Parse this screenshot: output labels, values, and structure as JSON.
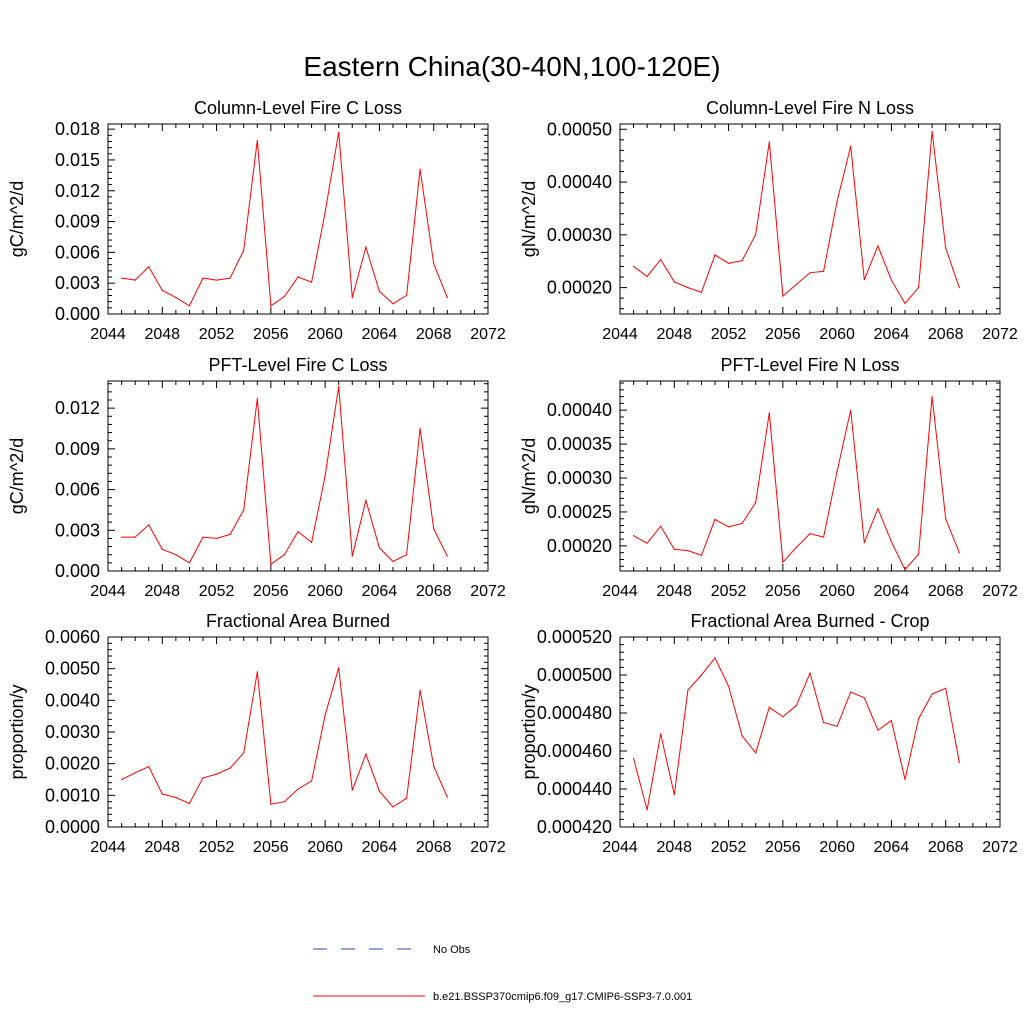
{
  "figure_title": "Eastern China(30-40N,100-120E)",
  "legend": [
    {
      "label": "No Obs",
      "color": "#3344aa",
      "style": "dashed"
    },
    {
      "label": "b.e21.BSSP370cmip6.f09_g17.CMIP6-SSP3-7.0.001",
      "color": "#ff0000",
      "style": "solid"
    }
  ],
  "chart_data": [
    {
      "type": "line",
      "title": "Column-Level Fire C Loss",
      "ylabel": "gC/m^2/d",
      "xlim": [
        2044,
        2072
      ],
      "xticks": [
        "2044",
        "2048",
        "2052",
        "2056",
        "2060",
        "2064",
        "2068",
        "2072"
      ],
      "ylim": [
        0,
        0.0185
      ],
      "yticks": [
        "0.000",
        "0.003",
        "0.006",
        "0.009",
        "0.012",
        "0.015",
        "0.018"
      ],
      "x": [
        2045,
        2046,
        2047,
        2048,
        2049,
        2050,
        2051,
        2052,
        2053,
        2054,
        2055,
        2056,
        2057,
        2058,
        2059,
        2060,
        2061,
        2062,
        2063,
        2064,
        2065,
        2066,
        2067,
        2068,
        2069
      ],
      "series": [
        {
          "values": [
            0.0035,
            0.0033,
            0.0046,
            0.0023,
            0.0016,
            0.0008,
            0.0035,
            0.0033,
            0.0035,
            0.0062,
            0.0169,
            0.0008,
            0.0017,
            0.0036,
            0.0031,
            0.0099,
            0.0177,
            0.0016,
            0.0065,
            0.0022,
            0.001,
            0.0018,
            0.0141,
            0.0049,
            0.0016
          ],
          "color": "#ff0000"
        }
      ]
    },
    {
      "type": "line",
      "title": "Column-Level Fire N Loss",
      "ylabel": "gN/m^2/d",
      "xlim": [
        2044,
        2072
      ],
      "xticks": [
        "2044",
        "2048",
        "2052",
        "2056",
        "2060",
        "2064",
        "2068",
        "2072"
      ],
      "ylim": [
        0.00015,
        0.00051
      ],
      "yticks": [
        "0.00020",
        "0.00030",
        "0.00040",
        "0.00050"
      ],
      "x": [
        2045,
        2046,
        2047,
        2048,
        2049,
        2050,
        2051,
        2052,
        2053,
        2054,
        2055,
        2056,
        2057,
        2058,
        2059,
        2060,
        2061,
        2062,
        2063,
        2064,
        2065,
        2066,
        2067,
        2068,
        2069
      ],
      "series": [
        {
          "values": [
            0.00024,
            0.000221,
            0.000253,
            0.000211,
            0.0002,
            0.000191,
            0.000262,
            0.000246,
            0.000251,
            0.000301,
            0.000476,
            0.000184,
            0.000206,
            0.000228,
            0.000231,
            0.000364,
            0.000468,
            0.000215,
            0.000279,
            0.000214,
            0.00017,
            0.0002,
            0.000496,
            0.000275,
            0.0002
          ],
          "color": "#ff0000"
        }
      ]
    },
    {
      "type": "line",
      "title": "PFT-Level Fire C Loss",
      "ylabel": "gC/m^2/d",
      "xlim": [
        2044,
        2072
      ],
      "xticks": [
        "2044",
        "2048",
        "2052",
        "2056",
        "2060",
        "2064",
        "2068",
        "2072"
      ],
      "ylim": [
        0,
        0.014
      ],
      "yticks": [
        "0.000",
        "0.003",
        "0.006",
        "0.009",
        "0.012"
      ],
      "x": [
        2045,
        2046,
        2047,
        2048,
        2049,
        2050,
        2051,
        2052,
        2053,
        2054,
        2055,
        2056,
        2057,
        2058,
        2059,
        2060,
        2061,
        2062,
        2063,
        2064,
        2065,
        2066,
        2067,
        2068,
        2069
      ],
      "series": [
        {
          "values": [
            0.0025,
            0.0025,
            0.0034,
            0.0016,
            0.0012,
            0.0006,
            0.0025,
            0.0024,
            0.0027,
            0.0045,
            0.0127,
            0.0005,
            0.0012,
            0.0029,
            0.0021,
            0.007,
            0.0136,
            0.0011,
            0.0052,
            0.0017,
            0.0007,
            0.0012,
            0.0105,
            0.0031,
            0.0011
          ],
          "color": "#ff0000"
        }
      ]
    },
    {
      "type": "line",
      "title": "PFT-Level Fire N Loss",
      "ylabel": "gN/m^2/d",
      "xlim": [
        2044,
        2072
      ],
      "xticks": [
        "2044",
        "2048",
        "2052",
        "2056",
        "2060",
        "2064",
        "2068",
        "2072"
      ],
      "ylim": [
        0.000163,
        0.000443
      ],
      "yticks": [
        "0.00020",
        "0.00025",
        "0.00030",
        "0.00035",
        "0.00040"
      ],
      "x": [
        2045,
        2046,
        2047,
        2048,
        2049,
        2050,
        2051,
        2052,
        2053,
        2054,
        2055,
        2056,
        2057,
        2058,
        2059,
        2060,
        2061,
        2062,
        2063,
        2064,
        2065,
        2066,
        2067,
        2068,
        2069
      ],
      "series": [
        {
          "values": [
            0.000215,
            0.000204,
            0.000229,
            0.000195,
            0.000193,
            0.000186,
            0.000239,
            0.000228,
            0.000233,
            0.000264,
            0.000396,
            0.000176,
            0.000198,
            0.000218,
            0.000213,
            0.00031,
            0.0004,
            0.000205,
            0.000255,
            0.000206,
            0.000165,
            0.000188,
            0.00042,
            0.00024,
            0.00019
          ],
          "color": "#ff0000"
        }
      ]
    },
    {
      "type": "line",
      "title": "Fractional Area Burned",
      "ylabel": "proportion/y",
      "xlim": [
        2044,
        2072
      ],
      "xticks": [
        "2044",
        "2048",
        "2052",
        "2056",
        "2060",
        "2064",
        "2068",
        "2072"
      ],
      "ylim": [
        0,
        0.006
      ],
      "yticks": [
        "0.0000",
        "0.0010",
        "0.0020",
        "0.0030",
        "0.0040",
        "0.0050",
        "0.0060"
      ],
      "x": [
        2045,
        2046,
        2047,
        2048,
        2049,
        2050,
        2051,
        2052,
        2053,
        2054,
        2055,
        2056,
        2057,
        2058,
        2059,
        2060,
        2061,
        2062,
        2063,
        2064,
        2065,
        2066,
        2067,
        2068,
        2069
      ],
      "series": [
        {
          "values": [
            0.0015,
            0.00171,
            0.00191,
            0.00104,
            0.00093,
            0.00074,
            0.00155,
            0.00167,
            0.00186,
            0.00234,
            0.0049,
            0.00072,
            0.0008,
            0.0012,
            0.00145,
            0.00353,
            0.00503,
            0.00116,
            0.0023,
            0.00113,
            0.00063,
            0.00091,
            0.00432,
            0.00192,
            0.00094
          ],
          "color": "#ff0000"
        }
      ]
    },
    {
      "type": "line",
      "title": "Fractional Area Burned - Crop",
      "ylabel": "proportion/y",
      "xlim": [
        2044,
        2072
      ],
      "xticks": [
        "2044",
        "2048",
        "2052",
        "2056",
        "2060",
        "2064",
        "2068",
        "2072"
      ],
      "ylim": [
        0.00042,
        0.00052
      ],
      "yticks": [
        "0.000420",
        "0.000440",
        "0.000460",
        "0.000480",
        "0.000500",
        "0.000520"
      ],
      "x": [
        2045,
        2046,
        2047,
        2048,
        2049,
        2050,
        2051,
        2052,
        2053,
        2054,
        2055,
        2056,
        2057,
        2058,
        2059,
        2060,
        2061,
        2062,
        2063,
        2064,
        2065,
        2066,
        2067,
        2068,
        2069
      ],
      "series": [
        {
          "values": [
            0.000456,
            0.000429,
            0.000469,
            0.000437,
            0.000492,
            0.0005,
            0.000509,
            0.000494,
            0.000468,
            0.000459,
            0.000483,
            0.000478,
            0.000484,
            0.000501,
            0.000475,
            0.000473,
            0.000491,
            0.000488,
            0.000471,
            0.000476,
            0.000445,
            0.000477,
            0.00049,
            0.000493,
            0.000454
          ],
          "color": "#ff0000"
        }
      ]
    }
  ]
}
